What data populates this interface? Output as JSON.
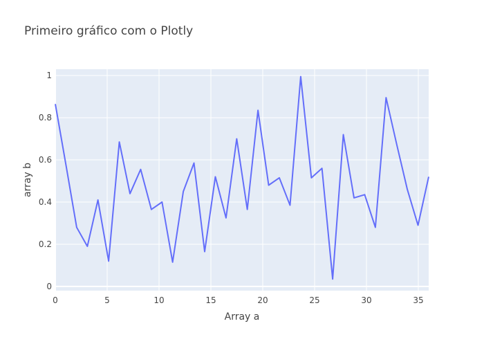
{
  "chart_data": {
    "type": "line",
    "title": "Primeiro gráfico com o Plotly",
    "xlabel": "Array a",
    "ylabel": "array b",
    "xlim": [
      0,
      36
    ],
    "ylim": [
      -0.02,
      1.03
    ],
    "grid": true,
    "legend": "none",
    "x_ticks": [
      "0",
      "5",
      "10",
      "15",
      "20",
      "25",
      "30",
      "35"
    ],
    "y_ticks": [
      "0",
      "0.2",
      "0.4",
      "0.6",
      "0.8",
      "1"
    ],
    "x_tick_values": [
      0,
      5,
      10,
      15,
      20,
      25,
      30,
      35
    ],
    "y_tick_values": [
      0,
      0.2,
      0.4,
      0.6,
      0.8,
      1
    ],
    "series": [
      {
        "line_color": "#636efa",
        "x": [
          0,
          1.03,
          2.06,
          3.09,
          4.11,
          5.14,
          6.17,
          7.2,
          8.23,
          9.26,
          10.29,
          11.31,
          12.34,
          13.37,
          14.4,
          15.43,
          16.46,
          17.49,
          18.51,
          19.54,
          20.57,
          21.6,
          22.63,
          23.66,
          24.69,
          25.71,
          26.74,
          27.77,
          28.8,
          29.83,
          30.86,
          31.89,
          32.91,
          33.94,
          34.97,
          36
        ],
        "y": [
          0.865,
          0.575,
          0.28,
          0.19,
          0.41,
          0.12,
          0.685,
          0.44,
          0.555,
          0.365,
          0.4,
          0.115,
          0.45,
          0.585,
          0.165,
          0.52,
          0.325,
          0.7,
          0.365,
          0.835,
          0.48,
          0.515,
          0.385,
          0.995,
          0.515,
          0.56,
          0.035,
          0.72,
          0.42,
          0.435,
          0.28,
          0.895,
          0.675,
          0.46,
          0.29,
          0.52
        ]
      }
    ]
  }
}
